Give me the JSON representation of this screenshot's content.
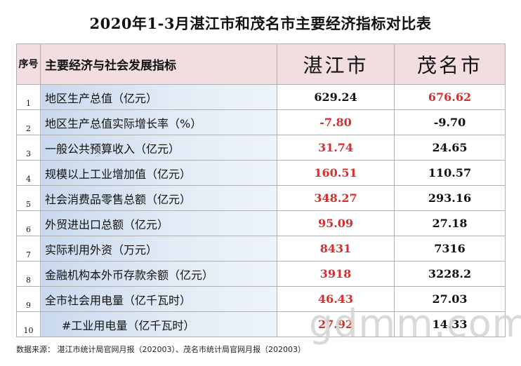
{
  "title": "2020年1-3月湛江市和茂名市主要经济指标对比表",
  "header": {
    "index": "序号",
    "indicator": "主要经济与社会发展指标",
    "city_a": "湛江市",
    "city_b": "茂名市"
  },
  "rows": [
    {
      "no": "1",
      "indicator": "地区生产总值（亿元）",
      "zhanjiang": "629.24",
      "maoming": "676.62",
      "zj_color": "black",
      "mm_color": "red"
    },
    {
      "no": "2",
      "indicator": "地区生产总值实际增长率（%）",
      "zhanjiang": "-7.80",
      "maoming": "-9.70",
      "zj_color": "red",
      "mm_color": "black"
    },
    {
      "no": "3",
      "indicator": "一般公共预算收入（亿元）",
      "zhanjiang": "31.74",
      "maoming": "24.65",
      "zj_color": "red",
      "mm_color": "black"
    },
    {
      "no": "4",
      "indicator": "规模以上工业增加值（亿元）",
      "zhanjiang": "160.51",
      "maoming": "110.57",
      "zj_color": "red",
      "mm_color": "black"
    },
    {
      "no": "5",
      "indicator": "社会消费品零售总额（亿元）",
      "zhanjiang": "348.27",
      "maoming": "293.16",
      "zj_color": "red",
      "mm_color": "black"
    },
    {
      "no": "6",
      "indicator": "外贸进出口总额（亿元）",
      "zhanjiang": "95.09",
      "maoming": "27.18",
      "zj_color": "red",
      "mm_color": "black"
    },
    {
      "no": "7",
      "indicator": "实际利用外资（万元）",
      "zhanjiang": "8431",
      "maoming": "7316",
      "zj_color": "red",
      "mm_color": "black"
    },
    {
      "no": "8",
      "indicator": "金融机构本外币存款余额（亿元）",
      "zhanjiang": "3918",
      "maoming": "3228.2",
      "zj_color": "red",
      "mm_color": "black"
    },
    {
      "no": "9",
      "indicator": "全市社会用电量（亿千瓦时）",
      "zhanjiang": "46.43",
      "maoming": "27.03",
      "zj_color": "red",
      "mm_color": "black"
    },
    {
      "no": "10",
      "indicator": "#工业用电量（亿千瓦时）",
      "zhanjiang": "27.92",
      "maoming": "14.33",
      "zj_color": "red",
      "mm_color": "black"
    }
  ],
  "source": "数据来源：  湛江市统计局官网月报（202003）、茂名市统计局官网月报（202003）",
  "watermark": "gdmm.com",
  "colors": {
    "red": "#d32f2f",
    "header_bg": "#f2dde1",
    "indicator_bg": "#c9d9ee"
  }
}
